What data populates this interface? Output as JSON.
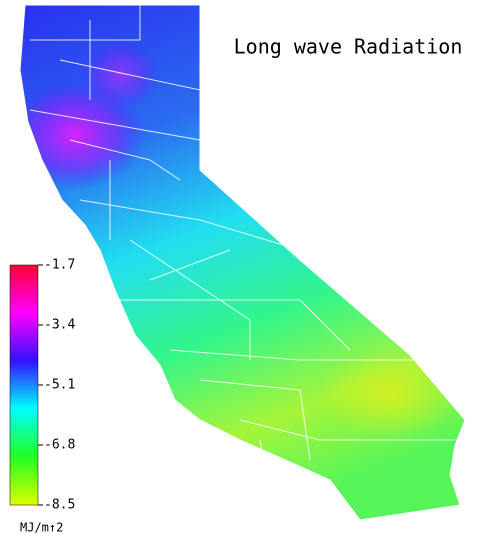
{
  "title": "Long wave Radiation",
  "colorbar": {
    "lim": [
      -8.5,
      -1.7
    ],
    "ticks": [
      -1.7,
      -3.4,
      -5.1,
      -6.8,
      -8.5
    ],
    "colors": [
      "#ff0033",
      "#ff00ff",
      "#3311ff",
      "#00ffff",
      "#22ff22",
      "#ddff00"
    ],
    "unit": "MJ/m↑2"
  }
}
